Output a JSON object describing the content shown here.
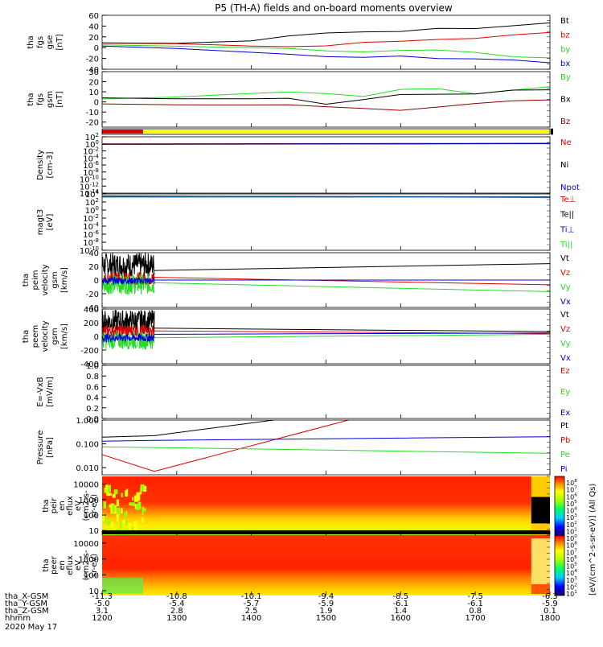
{
  "title": "P5 (TH-A) fields and on-board moments overview",
  "footer": {
    "row_labels": [
      "tha_X-GSM",
      "tha_Y-GSM",
      "tha_Z-GSM",
      "hhmm",
      "2020 May 17"
    ],
    "columns": [
      [
        "-11.3",
        "-5.0",
        "3.1",
        "1200"
      ],
      [
        "-10.8",
        "-5.4",
        "2.8",
        "1300"
      ],
      [
        "-10.1",
        "-5.7",
        "2.5",
        "1400"
      ],
      [
        "-9.4",
        "-5.9",
        "1.9",
        "1500"
      ],
      [
        "-8.5",
        "-6.1",
        "1.4",
        "1600"
      ],
      [
        "-7.5",
        "-6.1",
        "0.8",
        "1700"
      ],
      [
        "-6.3",
        "-5.9",
        "0.1",
        "1800"
      ]
    ]
  },
  "colorbar_label": "[eV/(cm^2-s-sr-eV)] (All Qs)",
  "colorbar_ticks": [
    "10^8",
    "10^7",
    "10^6",
    "10^5",
    "10^4",
    "10^3",
    "10^2",
    "10^1",
    "10^0",
    "10^8",
    "10^7",
    "10^6",
    "10^5",
    "10^4",
    "10^3",
    "10^2",
    "10^1"
  ],
  "colors": {
    "black": "#000000",
    "red": "#e00000",
    "green": "#22dd22",
    "blue": "#0000e0",
    "darkred": "#8b0000",
    "yellow": "#ffff00"
  },
  "chart_data": [
    {
      "type": "line",
      "ylabel": [
        "tha",
        "fgs",
        "gse",
        "[nT]"
      ],
      "ylim": [
        -40,
        60
      ],
      "yticks": [
        "60",
        "40",
        "20",
        "0",
        "-20",
        "-40"
      ],
      "legend": [
        "Bt",
        "bz",
        "by",
        "bx"
      ],
      "legend_colors": [
        "#000000",
        "#e00000",
        "#22dd22",
        "#0000e0"
      ],
      "x_hours": [
        12.0,
        13.0,
        14.0,
        14.5,
        15.0,
        15.5,
        16.0,
        16.5,
        17.0,
        17.5,
        18.0
      ],
      "series": [
        {
          "name": "Bt",
          "color": "#000000",
          "values": [
            9,
            8,
            13,
            20,
            26,
            29,
            30,
            34,
            37,
            41,
            46
          ]
        },
        {
          "name": "bz",
          "color": "#e00000",
          "values": [
            8,
            7,
            2,
            3,
            4,
            8,
            12,
            14,
            18,
            22,
            28
          ]
        },
        {
          "name": "by",
          "color": "#22dd22",
          "values": [
            5,
            3,
            0,
            -3,
            -8,
            -6,
            -3,
            -6,
            -9,
            -15,
            -19
          ]
        },
        {
          "name": "bx",
          "color": "#0000e0",
          "values": [
            3,
            -3,
            -9,
            -12,
            -16,
            -19,
            -17,
            -18,
            -21,
            -24,
            -28
          ]
        }
      ]
    },
    {
      "type": "line",
      "ylabel": [
        "tha",
        "fgs",
        "gsm",
        "[nT]"
      ],
      "ylim": [
        -25,
        30
      ],
      "yticks": [
        "30",
        "20",
        "10",
        "0",
        "-10",
        "-20"
      ],
      "legend": [
        "By",
        "Bx",
        "Bz"
      ],
      "legend_colors": [
        "#22dd22",
        "#000000",
        "#8b0000"
      ],
      "x_hours": [
        12.0,
        13.0,
        14.0,
        14.5,
        15.0,
        15.5,
        16.0,
        16.5,
        17.0,
        17.5,
        18.0
      ],
      "series": [
        {
          "name": "By",
          "color": "#22dd22",
          "values": [
            3,
            5,
            8,
            9,
            9,
            5,
            12,
            12,
            9,
            11,
            15
          ]
        },
        {
          "name": "Bx",
          "color": "#000000",
          "values": [
            4,
            4,
            3,
            3,
            -2,
            2,
            8,
            8,
            7,
            11,
            12
          ]
        },
        {
          "name": "Bz",
          "color": "#8b0000",
          "values": [
            -2,
            -3,
            -4,
            -4,
            -5,
            -6,
            -8,
            -4,
            -2,
            1,
            2
          ]
        }
      ]
    },
    {
      "type": "bar",
      "label": "mode bar",
      "segments": [
        {
          "from": 12.0,
          "to": 12.55,
          "color": "#e00000"
        },
        {
          "from": 12.55,
          "to": 18.0,
          "color": "#ffff00"
        }
      ]
    },
    {
      "type": "line",
      "ylabel": [
        "Density",
        "[cm-3]"
      ],
      "ylog": true,
      "ylim_exp": [
        -14,
        2
      ],
      "yticks": [
        "10^2",
        "10^0",
        "10^-2",
        "10^-4",
        "10^-6",
        "10^-8",
        "10^-10",
        "10^-12",
        "10^-14"
      ],
      "legend": [
        "Ne",
        "Ni",
        "Npot"
      ],
      "legend_colors": [
        "#e00000",
        "#000000",
        "#0000e0"
      ],
      "x_hours": [
        12.0,
        18.0
      ],
      "series": [
        {
          "name": "Ne",
          "color": "#e00000",
          "values": [
            1.0,
            1.5
          ]
        },
        {
          "name": "Ni",
          "color": "#000000",
          "values": [
            0.8,
            1.3
          ]
        },
        {
          "name": "Npot",
          "color": "#0000e0",
          "values": [
            0.7,
            1.1
          ]
        }
      ]
    },
    {
      "type": "line",
      "ylabel": [
        "magt3",
        "[eV]"
      ],
      "ylog": true,
      "ylim_exp": [
        -10,
        4
      ],
      "yticks": [
        "10^4",
        "10^2",
        "10^0",
        "10^-2",
        "10^-4",
        "10^-6",
        "10^-8",
        "10^-10"
      ],
      "legend": [
        "Te⊥",
        "Te||",
        "Ti⊥",
        "Ti||"
      ],
      "legend_colors": [
        "#e00000",
        "#000000",
        "#0000e0",
        "#22dd22"
      ],
      "x_hours": [
        12.0,
        18.0
      ],
      "series": [
        {
          "name": "Te⊥",
          "color": "#e00000",
          "values": [
            3000,
            1800
          ]
        },
        {
          "name": "Te||",
          "color": "#000000",
          "values": [
            3200,
            1200
          ]
        },
        {
          "name": "Ti⊥",
          "color": "#0000e0",
          "values": [
            2500,
            2000
          ]
        },
        {
          "name": "Ti||",
          "color": "#22dd22",
          "values": [
            1500,
            1500
          ]
        }
      ]
    },
    {
      "type": "line",
      "ylabel": [
        "tha",
        "peim",
        "velocity",
        "gsm",
        "[km/s]"
      ],
      "ylim": [
        -40,
        40
      ],
      "yticks": [
        "40",
        "20",
        "0",
        "-20",
        "-40"
      ],
      "legend": [
        "Vt",
        "Vz",
        "Vy",
        "Vx"
      ],
      "legend_colors": [
        "#000000",
        "#e00000",
        "#22dd22",
        "#0000e0"
      ],
      "noisy_until": 12.7,
      "x_hours": [
        12.7,
        18.0
      ],
      "series": [
        {
          "name": "Vt",
          "color": "#000000",
          "values": [
            14,
            24
          ],
          "noise_center": 22,
          "noise_amp": 18
        },
        {
          "name": "Vz",
          "color": "#e00000",
          "values": [
            4,
            -7
          ],
          "noise_center": 2,
          "noise_amp": 10
        },
        {
          "name": "Vy",
          "color": "#22dd22",
          "values": [
            -4,
            -17
          ],
          "noise_center": -6,
          "noise_amp": 15
        },
        {
          "name": "Vx",
          "color": "#0000e0",
          "values": [
            0,
            0
          ],
          "noise_center": -1,
          "noise_amp": 5
        }
      ]
    },
    {
      "type": "line",
      "ylabel": [
        "tha",
        "peem",
        "velocity",
        "gsm",
        "[km/s]"
      ],
      "ylim": [
        -400,
        400
      ],
      "yticks": [
        "400",
        "200",
        "0",
        "-200",
        "-400"
      ],
      "legend": [
        "Vt",
        "Vz",
        "Vy",
        "Vx"
      ],
      "legend_colors": [
        "#000000",
        "#e00000",
        "#22dd22",
        "#0000e0"
      ],
      "noisy_until": 12.7,
      "x_hours": [
        12.7,
        18.0
      ],
      "series": [
        {
          "name": "Vt",
          "color": "#000000",
          "values": [
            120,
            70
          ],
          "noise_center": 220,
          "noise_amp": 170
        },
        {
          "name": "Vz",
          "color": "#e00000",
          "values": [
            80,
            40
          ],
          "noise_center": 80,
          "noise_amp": 90
        },
        {
          "name": "Vy",
          "color": "#22dd22",
          "values": [
            -20,
            30
          ],
          "noise_center": -60,
          "noise_amp": 130
        },
        {
          "name": "Vx",
          "color": "#0000e0",
          "values": [
            30,
            50
          ],
          "noise_center": -20,
          "noise_amp": 60
        }
      ]
    },
    {
      "type": "line",
      "ylabel": [
        "E=-VxB",
        "[mV/m]"
      ],
      "ylim": [
        0,
        1
      ],
      "yticks": [
        "1.0",
        "0.8",
        "0.6",
        "0.4",
        "0.2",
        "0.0"
      ],
      "legend": [
        "Ez",
        "Ey",
        "Ex"
      ],
      "legend_colors": [
        "#e00000",
        "#22dd22",
        "#0000e0"
      ],
      "series": []
    },
    {
      "type": "line",
      "ylabel": [
        "Pressure",
        "[nPa]"
      ],
      "ylog": true,
      "ylim_exp": [
        -2.3,
        0
      ],
      "yticks": [
        "1.000",
        "0.100",
        "0.010"
      ],
      "ytick_exps": [
        0,
        -1,
        -2
      ],
      "legend": [
        "Pt",
        "Pb",
        "Pe",
        "Pi"
      ],
      "legend_colors": [
        "#000000",
        "#e00000",
        "#22dd22",
        "#0000e0"
      ],
      "series": [
        {
          "name": "Pt",
          "color": "#000000",
          "x_hours": [
            12.0,
            12.7,
            14.3
          ],
          "values": [
            0.19,
            0.22,
            1.0
          ]
        },
        {
          "name": "Pb",
          "color": "#e00000",
          "x_hours": [
            12.0,
            12.7,
            15.3
          ],
          "values": [
            0.035,
            0.007,
            1.0
          ]
        },
        {
          "name": "Pe",
          "color": "#22dd22",
          "x_hours": [
            12.0,
            12.7,
            18.0
          ],
          "values": [
            0.075,
            0.07,
            0.04
          ]
        },
        {
          "name": "Pi",
          "color": "#0000e0",
          "x_hours": [
            12.0,
            12.7,
            18.0
          ],
          "values": [
            0.13,
            0.14,
            0.2
          ]
        }
      ]
    },
    {
      "type": "heatmap",
      "ylabel": [
        "tha",
        "peir",
        "en",
        "eflux",
        "eV",
        "(cm2-s-",
        "sr-eV)"
      ],
      "ylog": true,
      "ylim_exp": [
        0.7,
        4.5
      ],
      "yticks": [
        "10000",
        "1000",
        "100",
        "10"
      ],
      "ytick_exps": [
        4,
        3,
        2,
        1
      ]
    },
    {
      "type": "heatmap",
      "ylabel": [
        "tha",
        "peer",
        "en",
        "eflux",
        "eV",
        "(cm2-s-",
        "sr-eV)"
      ],
      "ylog": true,
      "ylim_exp": [
        0.7,
        4.5
      ],
      "yticks": [
        "10000",
        "1000",
        "100",
        "10"
      ],
      "ytick_exps": [
        4,
        3,
        2,
        1
      ]
    }
  ]
}
